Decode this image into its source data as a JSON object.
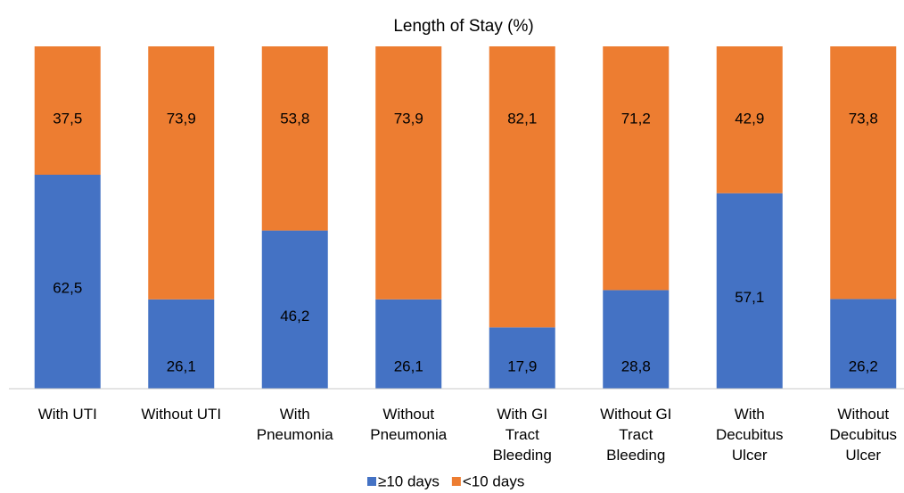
{
  "chart_data": {
    "type": "stacked_bar",
    "title": "Length of Stay (%)",
    "categories": [
      "With UTI",
      "Without UTI",
      "With\nPneumonia",
      "Without\nPneumonia",
      "With GI\nTract\nBleeding",
      "Without GI\nTract\nBleeding",
      "With\nDecubitus\nUlcer",
      "Without\nDecubitus\nUlcer"
    ],
    "series": [
      {
        "name": "≥10 days",
        "color": "#4472c4",
        "values": [
          62.5,
          26.1,
          46.2,
          26.1,
          17.9,
          28.8,
          57.1,
          26.2
        ],
        "value_labels": [
          "62,5",
          "26,1",
          "46,2",
          "26,1",
          "17,9",
          "28,8",
          "57,1",
          "26,2"
        ]
      },
      {
        "name": "<10 days",
        "color": "#ed7d31",
        "values": [
          37.5,
          73.9,
          53.8,
          73.9,
          82.1,
          71.2,
          42.9,
          73.8
        ],
        "value_labels": [
          "37,5",
          "73,9",
          "53,8",
          "73,9",
          "82,1",
          "71,2",
          "42,9",
          "73,8"
        ]
      }
    ],
    "ylim": [
      0,
      100
    ],
    "legend": "bottom"
  }
}
